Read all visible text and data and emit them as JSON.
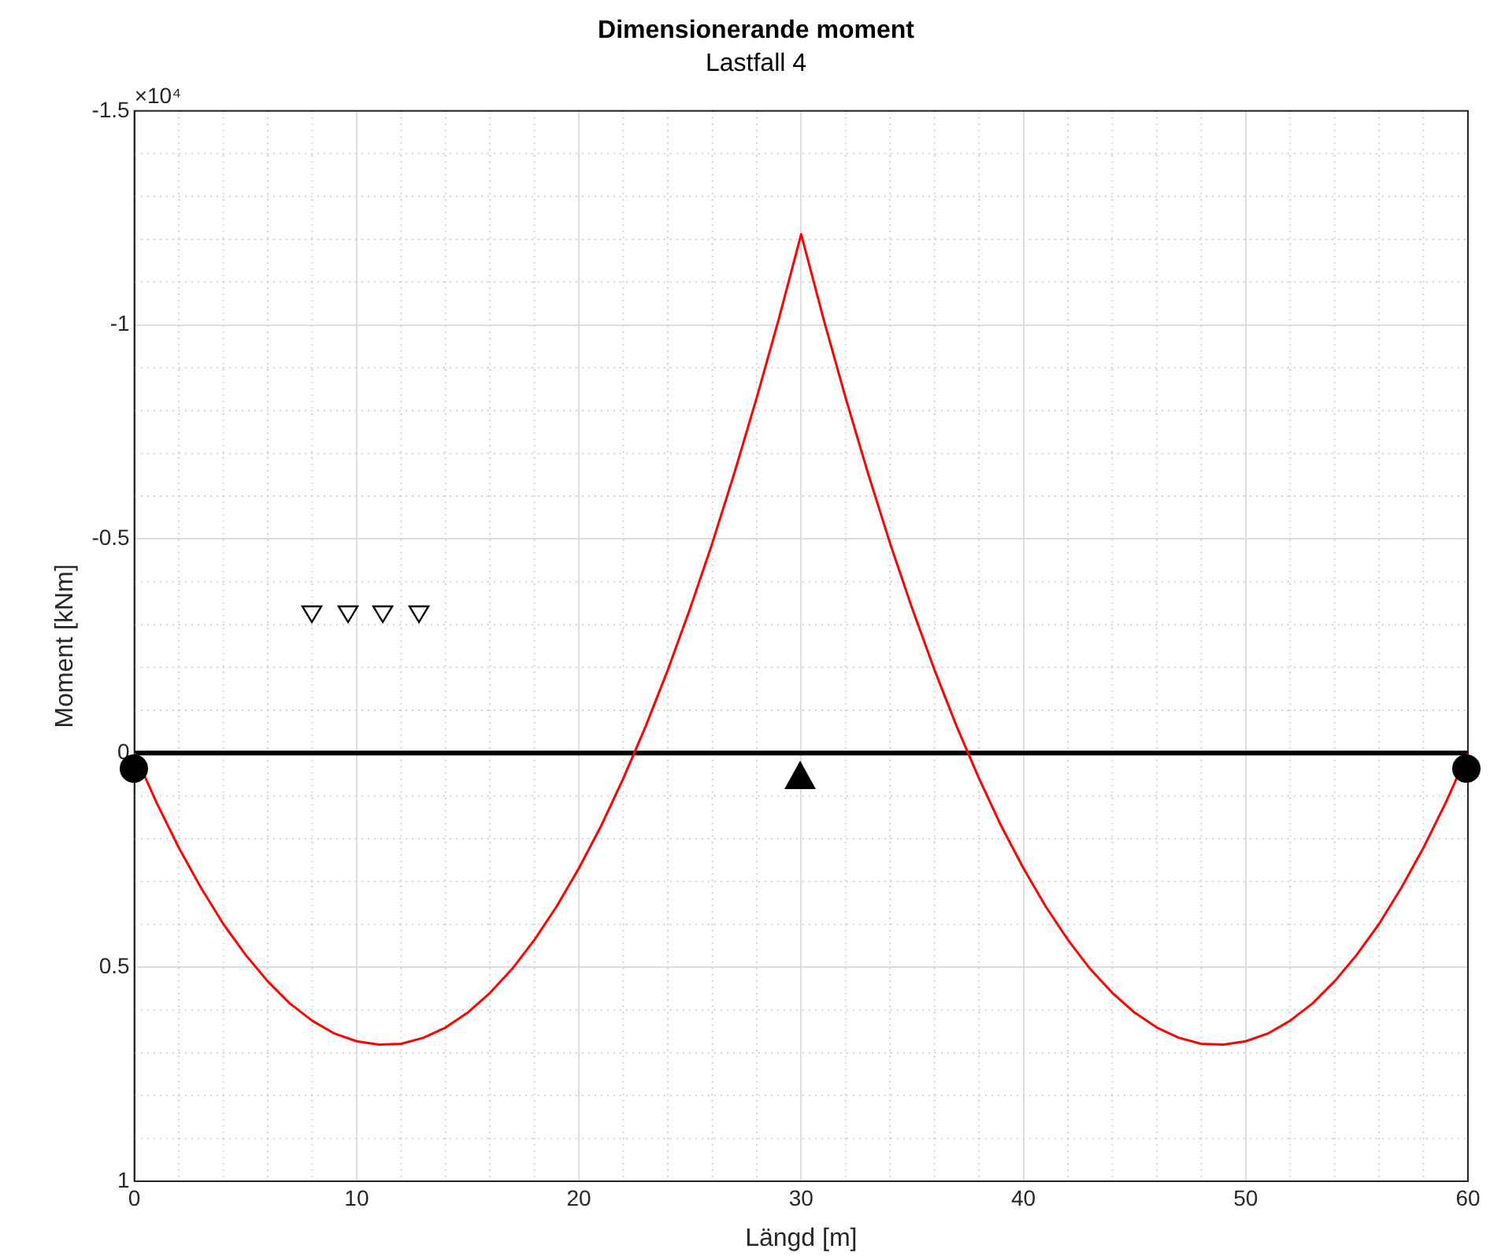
{
  "chart_data": {
    "type": "line",
    "title": "Dimensionerande moment",
    "subtitle": "Lastfall 4",
    "xlabel": "Längd [m]",
    "ylabel": "Moment [kNm]",
    "annotations": [
      "×10⁴"
    ],
    "x": [
      0,
      1,
      2,
      3,
      4,
      5,
      6,
      7,
      8,
      9,
      10,
      11,
      12,
      13,
      14,
      15,
      16,
      17,
      18,
      19,
      20,
      21,
      22,
      23,
      24,
      25,
      26,
      27,
      28,
      29,
      30,
      31,
      32,
      33,
      34,
      35,
      36,
      37,
      38,
      39,
      40,
      41,
      42,
      43,
      44,
      45,
      46,
      47,
      48,
      49,
      50,
      51,
      52,
      53,
      54,
      55,
      56,
      57,
      58,
      59,
      60
    ],
    "series": [
      {
        "color": "#ff0000",
        "values": [
          0,
          0.116,
          0.221,
          0.315,
          0.399,
          0.471,
          0.533,
          0.585,
          0.625,
          0.655,
          0.673,
          0.681,
          0.679,
          0.665,
          0.641,
          0.606,
          0.56,
          0.504,
          0.436,
          0.358,
          0.269,
          0.17,
          0.059,
          -0.062,
          -0.194,
          -0.337,
          -0.49,
          -0.655,
          -0.83,
          -1.015,
          -1.212,
          -1.015,
          -0.83,
          -0.655,
          -0.49,
          -0.337,
          -0.194,
          -0.062,
          0.059,
          0.17,
          0.269,
          0.358,
          0.436,
          0.504,
          0.56,
          0.606,
          0.641,
          0.665,
          0.679,
          0.681,
          0.673,
          0.655,
          0.625,
          0.585,
          0.533,
          0.471,
          0.399,
          0.315,
          0.221,
          0.116,
          0
        ]
      }
    ],
    "xlim": [
      0,
      60
    ],
    "xticks": [
      0,
      10,
      20,
      30,
      40,
      50,
      60
    ],
    "ylim": [
      1,
      -1.5
    ],
    "yticks": [
      -1.5,
      -1,
      -0.5,
      0,
      0.5,
      1
    ],
    "ref_lines": [
      {
        "axis": "y",
        "value": 0,
        "color": "#000000"
      }
    ],
    "grid": true,
    "legend": false,
    "marker": "none",
    "line_style": "solid"
  }
}
